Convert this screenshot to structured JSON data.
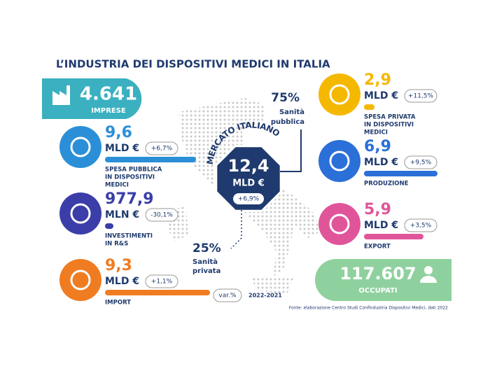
{
  "title": "L’INDUSTRIA DEI DISPOSITIVI MEDICI IN ITALIA",
  "imprese": {
    "value": "4.641",
    "label": "IMPRESE"
  },
  "left": [
    {
      "value": "9,6",
      "unit": "MLD €",
      "change": "+6,7%",
      "label": [
        "SPESA PUBBLICA",
        "IN DISPOSITIVI",
        "MEDICI"
      ],
      "color": "#2b8fd8"
    },
    {
      "value": "977,9",
      "unit": "MLN €",
      "change": "-30,1%",
      "label": [
        "INVESTIMENTI",
        "IN R&S"
      ],
      "color": "#3b3ea8"
    },
    {
      "value": "9,3",
      "unit": "MLD €",
      "change": "+1,1%",
      "label": [
        "IMPORT"
      ],
      "color": "#f07c22"
    }
  ],
  "right": [
    {
      "value": "2,9",
      "unit": "MLD €",
      "change": "+11,5%",
      "label": [
        "SPESA PRIVATA",
        "IN DISPOSITIVI",
        "MEDICI"
      ],
      "color": "#f5b800"
    },
    {
      "value": "6,9",
      "unit": "MLD €",
      "change": "+9,5%",
      "label": [
        "PRODUZIONE"
      ],
      "color": "#2b6fd8"
    },
    {
      "value": "5,9",
      "unit": "MLD €",
      "change": "+3,5%",
      "label": [
        "EXPORT"
      ],
      "color": "#e0559a"
    }
  ],
  "market": {
    "heading": "MERCATO ITALIANO",
    "value": "12,4",
    "unit": "MLD €",
    "change": "+6,9%"
  },
  "public": {
    "share": "75%",
    "label": [
      "Sanità",
      "pubblica"
    ]
  },
  "private": {
    "share": "25%",
    "label": [
      "Sanità",
      "privata"
    ]
  },
  "occupati": {
    "value": "117.607",
    "label": "OCCUPATI"
  },
  "legend": {
    "var": "var.%",
    "period": "2022-2021"
  },
  "source": "Fonte: elaborazione Centro Studi Confindustria Dispositivi Medici, dati 2022"
}
